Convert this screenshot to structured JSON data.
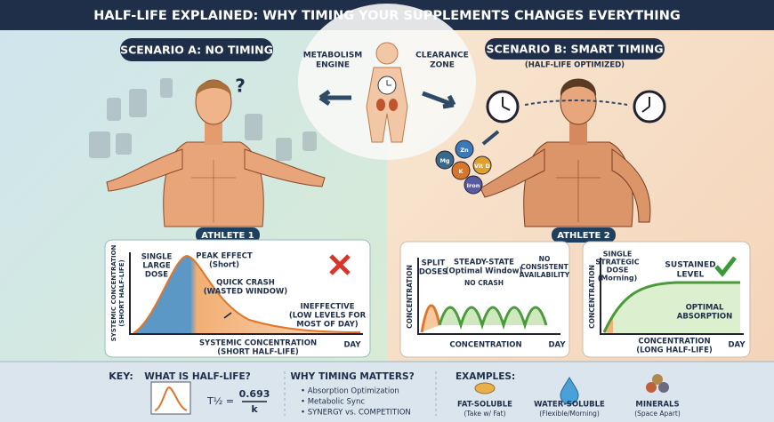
{
  "header": {
    "title": "HALF-LIFE EXPLAINED: WHY TIMING YOUR SUPPLEMENTS CHANGES EVERYTHING"
  },
  "scenario_a": {
    "label": "SCENARIO A: NO TIMING",
    "question": "?",
    "athlete": "ATHLETE 1"
  },
  "center": {
    "metabolism": [
      "METABOLISM",
      "ENGINE"
    ],
    "clearance": [
      "CLEARANCE",
      "ZONE"
    ]
  },
  "scenario_b": {
    "label": "SCENARIO B: SMART TIMING",
    "subtitle": "(HALF-LIFE OPTIMIZED)",
    "athlete": "ATHLETE 2",
    "supplements": [
      "Mg",
      "Zn",
      "K",
      "Vit D",
      "Iron"
    ]
  },
  "chart_a": {
    "y_label": [
      "SYSTEMIC CONCENTRATION",
      "(SHORT HALF-LIFE)"
    ],
    "dose": [
      "SINGLE",
      "LARGE",
      "DOSE"
    ],
    "peak": [
      "PEAK EFFECT",
      "(Short)"
    ],
    "crash": [
      "QUICK CRASH",
      "(WASTED WINDOW)"
    ],
    "ineffective": [
      "INEFFECTIVE",
      "(LOW LEVELS FOR",
      "MOST OF DAY)"
    ],
    "x_label": [
      "SYSTEMIC CONCENTRATION",
      "(SHORT HALF-LIFE)"
    ],
    "x_end": "DAY"
  },
  "chart_b1": {
    "y_label": "CONCENTRATION",
    "split": [
      "SPLIT",
      "DOSES"
    ],
    "steady": [
      "STEADY-STATE",
      "(Optimal Window)"
    ],
    "no_crash": "NO CRASH",
    "no_consistent": [
      "NO",
      "CONSISTENT",
      "AVAILABILITY"
    ],
    "x_label": "CONCENTRATION",
    "x_end": "DAY"
  },
  "chart_b2": {
    "y_label": "CONCENTRATION",
    "dose": [
      "SINGLE",
      "STRATEGIC",
      "DOSE",
      "(Morning)"
    ],
    "sustained": [
      "SUSTAINED",
      "LEVEL"
    ],
    "optimal": [
      "OPTIMAL",
      "ABSORPTION"
    ],
    "x_label": [
      "CONCENTRATION",
      "(LONG HALF-LIFE)"
    ],
    "x_end": "DAY"
  },
  "key": {
    "label": "KEY:",
    "heading": "WHAT IS HALF-LIFE?",
    "formula_left": "T½ =",
    "numerator": "0.693",
    "denominator": "k"
  },
  "timing": {
    "heading": "WHY TIMING MATTERS?",
    "items": [
      "• Absorption Optimization",
      "• Metabolic Sync",
      "• SYNERGY vs. COMPETITION"
    ]
  },
  "examples": {
    "heading": "EXAMPLES:",
    "items": [
      {
        "name": "FAT-SOLUBLE",
        "note": "(Take w/ Fat)"
      },
      {
        "name": "WATER-SOLUBLE",
        "note": "(Flexible/Morning)"
      },
      {
        "name": "MINERALS",
        "note": "(Space Apart)"
      }
    ]
  }
}
